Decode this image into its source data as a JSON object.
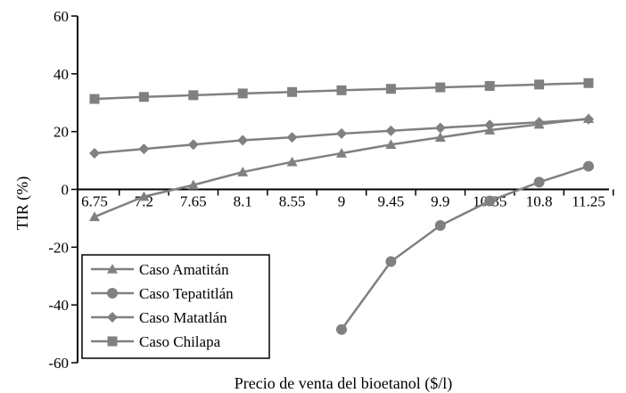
{
  "chart_data": {
    "type": "line",
    "title": "",
    "xlabel": "Precio de venta del bioetanol ($/l)",
    "ylabel": "TIR (%)",
    "ylim": [
      -60,
      60
    ],
    "yticks": [
      "60",
      "40",
      "20",
      "0",
      "-20",
      "-40",
      "-60"
    ],
    "categories": [
      "6.75",
      "7.2",
      "7.65",
      "8.1",
      "8.55",
      "9",
      "9.45",
      "9.9",
      "10.35",
      "10.8",
      "11.25"
    ],
    "legend_position": "bottom-left",
    "grid": false,
    "line_color": "#808080",
    "series": [
      {
        "name": "Caso Amatitán",
        "marker": "triangle",
        "values": [
          -9.5,
          -2.5,
          1.5,
          6,
          9.5,
          12.5,
          15.5,
          18,
          20.5,
          22.5,
          24.5
        ]
      },
      {
        "name": "Caso Tepatitlán",
        "marker": "circle",
        "values": [
          null,
          null,
          null,
          null,
          null,
          -48.5,
          -25,
          -12.5,
          -4,
          2.5,
          8
        ]
      },
      {
        "name": "Caso Matatlán",
        "marker": "diamond",
        "values": [
          12.5,
          14,
          15.5,
          17,
          18,
          19.3,
          20.3,
          21.3,
          22.3,
          23.2,
          24.3
        ]
      },
      {
        "name": "Caso Chilapa",
        "marker": "square",
        "values": [
          31.3,
          32,
          32.6,
          33.2,
          33.7,
          34.3,
          34.8,
          35.3,
          35.8,
          36.3,
          36.8
        ]
      }
    ]
  }
}
